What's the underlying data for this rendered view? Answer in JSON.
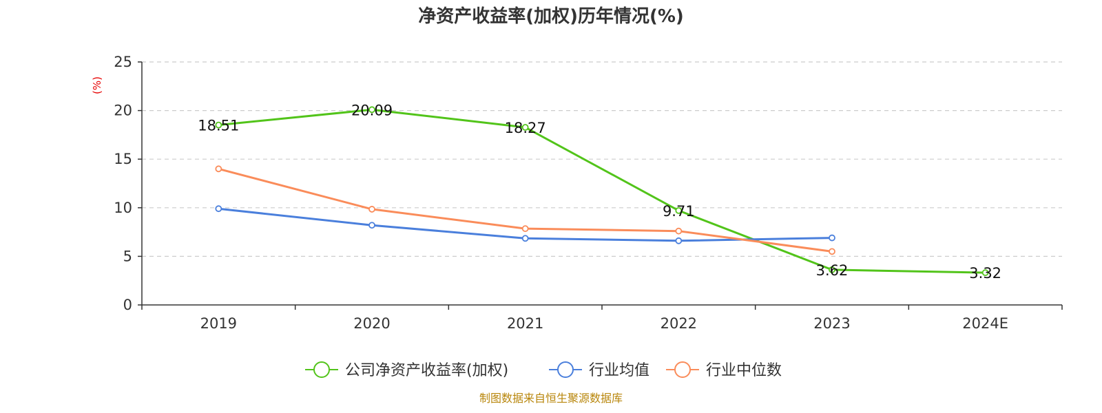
{
  "chart_data": {
    "type": "line",
    "title": "净资产收益率(加权)历年情况(%)",
    "ylabel": "(%)",
    "xlabel": "",
    "categories": [
      "2019",
      "2020",
      "2021",
      "2022",
      "2023",
      "2024E"
    ],
    "yticks": [
      "0",
      "5",
      "10",
      "15",
      "20",
      "25"
    ],
    "ylim": [
      0,
      25
    ],
    "grid": true,
    "legend_position": "bottom-center",
    "series": [
      {
        "name": "公司净资产收益率(加权)",
        "color": "#52c41a",
        "values": [
          18.51,
          20.09,
          18.27,
          9.71,
          3.62,
          3.32
        ],
        "labels": [
          "18.51",
          "20.09",
          "18.27",
          "9.71",
          "3.62",
          "3.32"
        ]
      },
      {
        "name": "行业均值",
        "color": "#4a7fdc",
        "values": [
          9.9,
          8.2,
          6.85,
          6.6,
          6.9,
          null
        ]
      },
      {
        "name": "行业中位数",
        "color": "#fa8c5a",
        "values": [
          14.0,
          9.85,
          7.85,
          7.6,
          5.5,
          null
        ]
      }
    ],
    "source": "制图数据来自恒生聚源数据库"
  }
}
